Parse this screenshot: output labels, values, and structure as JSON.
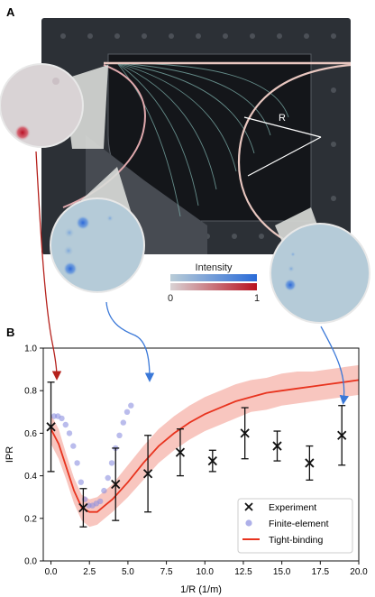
{
  "panels": {
    "a_label": "A",
    "b_label": "B"
  },
  "photo": {
    "radius_label": "R",
    "colorbar_title": "Intensity",
    "colorbar_min": "0",
    "colorbar_max": "1",
    "colors": {
      "frame": "#1d1f22",
      "board": "#3a3e44",
      "fiber": "#e9c7c0",
      "red_spot": "#c0182a",
      "blue_spot": "#2f6fd6",
      "arrow_red": "#b5211c",
      "arrow_blue": "#3a78d8"
    }
  },
  "chart_data": {
    "type": "scatter",
    "xlabel": "1/R (1/m)",
    "ylabel": "IPR",
    "xlim": [
      -0.5,
      20.0
    ],
    "ylim": [
      0.0,
      1.0
    ],
    "xticks": [
      "0.0",
      "2.5",
      "5.0",
      "7.5",
      "10.0",
      "12.5",
      "15.0",
      "17.5",
      "20.0"
    ],
    "yticks": [
      "0.0",
      "0.2",
      "0.4",
      "0.6",
      "0.8",
      "1.0"
    ],
    "grid": false,
    "legend_position": "bottom-right",
    "series": [
      {
        "name": "Experiment",
        "marker": "x",
        "color": "#111111",
        "x": [
          0.0,
          2.1,
          4.2,
          6.3,
          8.4,
          10.5,
          12.6,
          14.7,
          16.8,
          18.9
        ],
        "y": [
          0.63,
          0.25,
          0.36,
          0.41,
          0.51,
          0.47,
          0.6,
          0.54,
          0.46,
          0.59
        ],
        "err": [
          0.21,
          0.09,
          0.17,
          0.18,
          0.11,
          0.05,
          0.12,
          0.07,
          0.08,
          0.14
        ]
      },
      {
        "name": "Finite-element",
        "marker": "circle",
        "color": "#8c8fe0",
        "x": [
          0.2,
          0.45,
          0.7,
          0.95,
          1.2,
          1.45,
          1.7,
          1.95,
          2.2,
          2.45,
          2.7,
          2.95,
          3.2,
          3.45,
          3.7,
          3.95,
          4.2,
          4.45,
          4.7,
          4.95,
          5.2
        ],
        "y": [
          0.68,
          0.68,
          0.67,
          0.64,
          0.6,
          0.54,
          0.46,
          0.37,
          0.29,
          0.26,
          0.26,
          0.27,
          0.28,
          0.33,
          0.39,
          0.46,
          0.53,
          0.59,
          0.65,
          0.7,
          0.73
        ]
      },
      {
        "name": "Tight-binding",
        "type": "line",
        "color": "#e8331e",
        "band_color": "#f6b3a9",
        "x": [
          0.0,
          0.5,
          1.0,
          1.5,
          2.0,
          2.5,
          3.0,
          3.5,
          4.0,
          5.0,
          6.0,
          7.0,
          8.0,
          9.0,
          10.0,
          11.0,
          12.0,
          13.0,
          14.0,
          15.0,
          16.0,
          17.0,
          18.0,
          19.0,
          20.0
        ],
        "y": [
          0.62,
          0.55,
          0.44,
          0.33,
          0.25,
          0.23,
          0.23,
          0.26,
          0.29,
          0.37,
          0.46,
          0.54,
          0.6,
          0.65,
          0.69,
          0.72,
          0.75,
          0.77,
          0.79,
          0.8,
          0.81,
          0.82,
          0.83,
          0.84,
          0.85
        ],
        "band_lower": [
          0.55,
          0.48,
          0.38,
          0.27,
          0.19,
          0.16,
          0.17,
          0.2,
          0.23,
          0.3,
          0.38,
          0.46,
          0.52,
          0.57,
          0.61,
          0.64,
          0.67,
          0.7,
          0.71,
          0.73,
          0.74,
          0.75,
          0.76,
          0.77,
          0.78
        ],
        "band_upper": [
          0.69,
          0.62,
          0.5,
          0.39,
          0.31,
          0.29,
          0.3,
          0.33,
          0.36,
          0.45,
          0.54,
          0.62,
          0.68,
          0.73,
          0.77,
          0.8,
          0.83,
          0.85,
          0.86,
          0.88,
          0.89,
          0.89,
          0.9,
          0.91,
          0.92
        ]
      }
    ]
  }
}
